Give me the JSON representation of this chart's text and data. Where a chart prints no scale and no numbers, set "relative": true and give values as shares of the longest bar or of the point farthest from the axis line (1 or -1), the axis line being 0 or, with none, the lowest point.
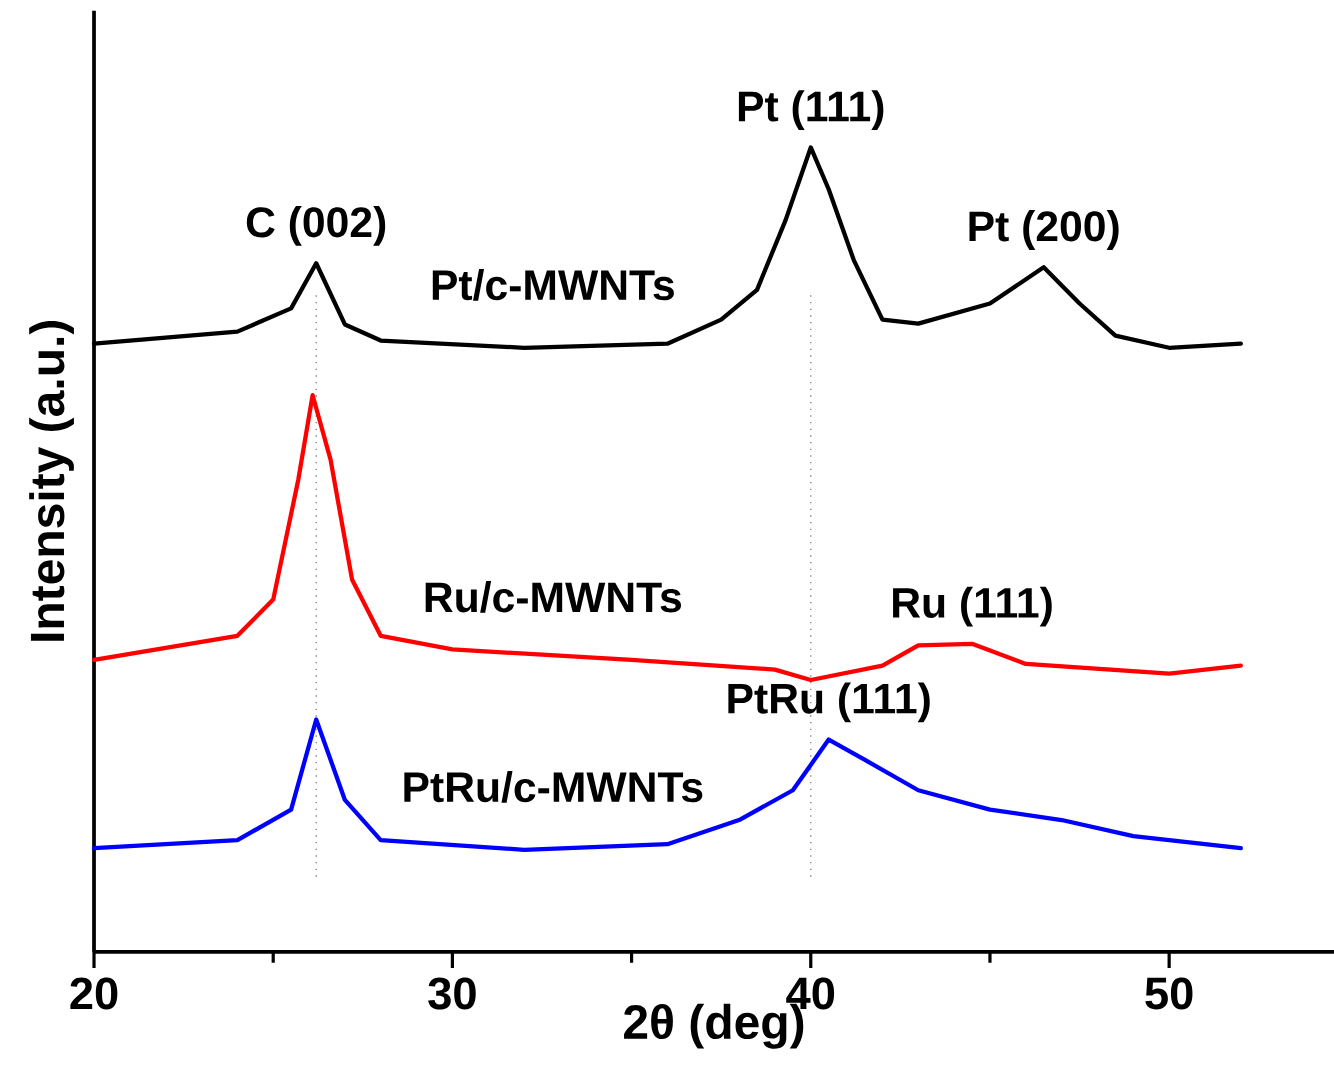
{
  "chart_data": {
    "type": "line",
    "relative": true,
    "xlabel": "2θ (deg)",
    "ylabel": "Intensity (a.u.)",
    "xlim": [
      20,
      54.6
    ],
    "xticks": [
      20,
      30,
      40,
      50
    ],
    "tick_labels": "x",
    "series": [
      {
        "name": "Pt/c-MWNTs",
        "color": "#000000",
        "x": [
          20,
          24,
          25.5,
          26.2,
          27,
          28,
          32,
          36,
          37.5,
          38.5,
          39.3,
          40,
          40.5,
          41.2,
          42,
          43,
          45,
          46.5,
          47.5,
          48.5,
          50,
          52
        ],
        "values": [
          0.756,
          0.771,
          0.8,
          0.856,
          0.78,
          0.76,
          0.751,
          0.756,
          0.786,
          0.823,
          0.91,
          1.0,
          0.948,
          0.86,
          0.786,
          0.781,
          0.806,
          0.851,
          0.806,
          0.766,
          0.751,
          0.756
        ]
      },
      {
        "name": "Ru/c-MWNTs",
        "color": "#ff0000",
        "x": [
          20,
          24,
          25,
          25.7,
          26.1,
          26.6,
          27.2,
          28,
          30,
          35,
          39,
          40,
          42,
          43,
          44.5,
          46,
          50,
          52
        ],
        "values": [
          0.363,
          0.393,
          0.438,
          0.587,
          0.692,
          0.612,
          0.463,
          0.393,
          0.376,
          0.363,
          0.351,
          0.338,
          0.356,
          0.381,
          0.383,
          0.358,
          0.346,
          0.356
        ]
      },
      {
        "name": "PtRu/c-MWNTs",
        "color": "#0000ff",
        "x": [
          20,
          24,
          25.5,
          26.2,
          27,
          28,
          32,
          36,
          38,
          39.5,
          40.5,
          41.5,
          43,
          45,
          47,
          49,
          52
        ],
        "values": [
          0.129,
          0.139,
          0.177,
          0.289,
          0.189,
          0.139,
          0.127,
          0.134,
          0.164,
          0.201,
          0.264,
          0.239,
          0.201,
          0.177,
          0.164,
          0.144,
          0.129
        ]
      }
    ],
    "ref_lines": [
      {
        "axis": "x",
        "value": 26.2,
        "color": "#808080",
        "line_style": "dotted"
      },
      {
        "axis": "x",
        "value": 40,
        "color": "#808080",
        "line_style": "dotted"
      }
    ],
    "annotations": [
      {
        "text": "C (002)",
        "x": 26.2,
        "y": 0.856
      },
      {
        "text": "Pt (111)",
        "x": 40,
        "y": 1.0
      },
      {
        "text": "Pt (200)",
        "x": 46.5,
        "y": 0.851
      },
      {
        "text": "Ru (111)",
        "x": 44.5,
        "y": 0.383
      },
      {
        "text": "PtRu (111)",
        "x": 40.5,
        "y": 0.264
      }
    ]
  }
}
